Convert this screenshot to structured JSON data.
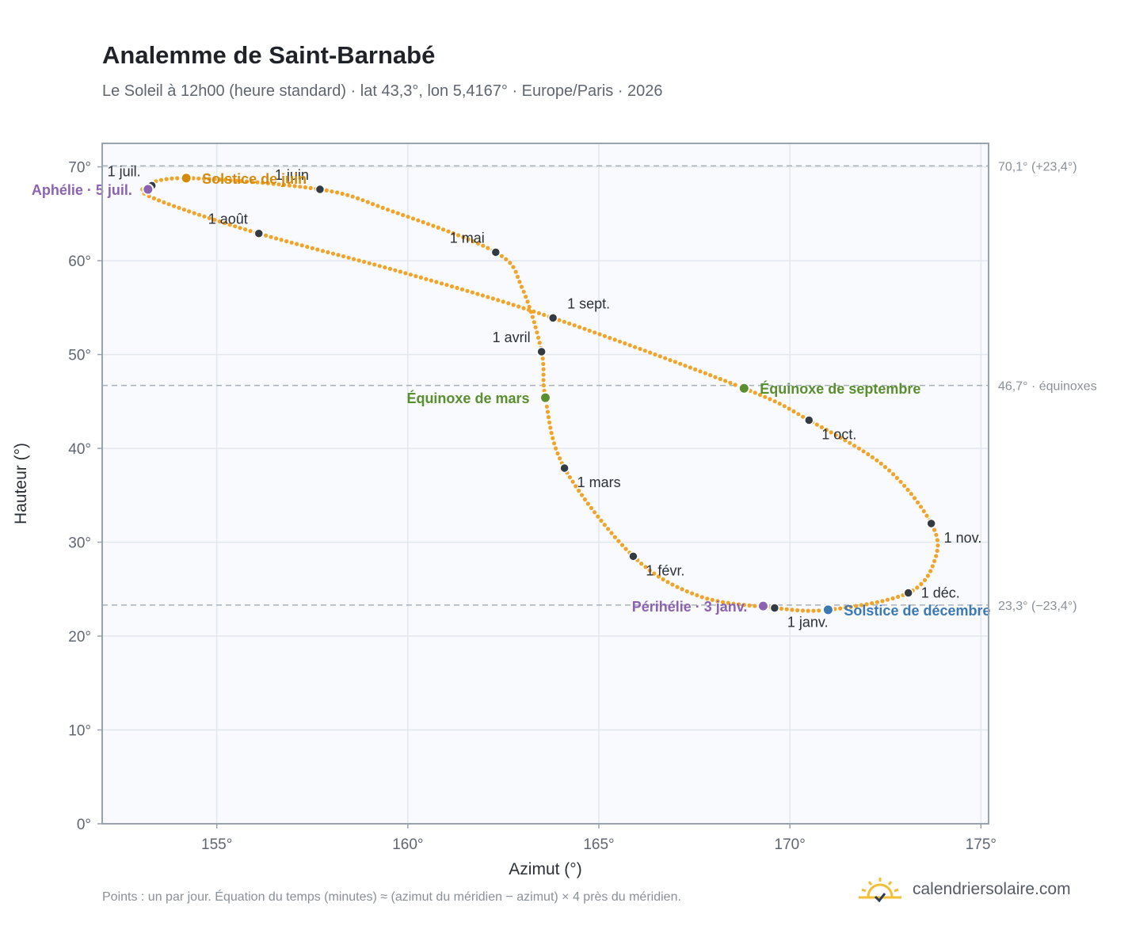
{
  "header": {
    "title": "Analemme de Saint-Barnabé",
    "subtitle": "Le Soleil à 12h00 (heure standard) · lat 43,3°, lon 5,4167° · Europe/Paris · 2026"
  },
  "footer": {
    "note": "Points : un par jour. Équation du temps (minutes) ≈ (azimut du méridien − azimut) × 4 près du méridien.",
    "brand": "calendriersolaire.com"
  },
  "colors": {
    "curve": "#f0a52a",
    "month_marker": "#343a42",
    "solstice_june": "#d68a0c",
    "solstice_december": "#3c78b4",
    "equinox": "#5a8f2f",
    "apsis": "#8c62b2",
    "reference_line": "#a9b1bc",
    "plot_background": "#f8fafd",
    "grid": "#e3e8ee"
  },
  "chart_data": {
    "type": "scatter",
    "xlabel": "Azimut (°)",
    "ylabel": "Hauteur (°)",
    "xlim": [
      152,
      175.2
    ],
    "ylim": [
      0,
      72.5
    ],
    "x_ticks": [
      155,
      160,
      165,
      170,
      175
    ],
    "x_tick_labels": [
      "155°",
      "160°",
      "165°",
      "170°",
      "175°"
    ],
    "y_ticks": [
      0,
      10,
      20,
      30,
      40,
      50,
      60,
      70
    ],
    "y_tick_labels": [
      "0°",
      "10°",
      "20°",
      "30°",
      "40°",
      "50°",
      "60°",
      "70°"
    ],
    "grid": true,
    "reference_lines": [
      {
        "y": 70.1,
        "label": "70,1° (+23,4°)"
      },
      {
        "y": 46.7,
        "label": "46,7° · équinoxes"
      },
      {
        "y": 23.3,
        "label": "23,3° (−23,4°)"
      }
    ],
    "month_markers": [
      {
        "label": "1 janv.",
        "x": 169.6,
        "y": 23.0,
        "label_pos": "below-right"
      },
      {
        "label": "1 févr.",
        "x": 165.9,
        "y": 28.5,
        "label_pos": "below-right"
      },
      {
        "label": "1 mars",
        "x": 164.1,
        "y": 37.9,
        "label_pos": "below-right"
      },
      {
        "label": "1 avril",
        "x": 163.5,
        "y": 50.3,
        "label_pos": "above-left"
      },
      {
        "label": "1 mai",
        "x": 162.3,
        "y": 60.9,
        "label_pos": "above-left"
      },
      {
        "label": "1 juin",
        "x": 157.7,
        "y": 67.6,
        "label_pos": "above-left"
      },
      {
        "label": "1 juil.",
        "x": 153.3,
        "y": 68.0,
        "label_pos": "above-left"
      },
      {
        "label": "1 août",
        "x": 156.1,
        "y": 62.9,
        "label_pos": "above-left"
      },
      {
        "label": "1 sept.",
        "x": 163.8,
        "y": 53.9,
        "label_pos": "above-right"
      },
      {
        "label": "1 oct.",
        "x": 170.5,
        "y": 43.0,
        "label_pos": "below-right"
      },
      {
        "label": "1 nov.",
        "x": 173.7,
        "y": 32.0,
        "label_pos": "below-right"
      },
      {
        "label": "1 déc.",
        "x": 173.1,
        "y": 24.6,
        "label_pos": "right"
      }
    ],
    "events": [
      {
        "label": "Solstice de juin",
        "x": 154.2,
        "y": 68.8,
        "color": "#d68a0c",
        "label_pos": "right"
      },
      {
        "label": "Aphélie · 5 juil.",
        "x": 153.2,
        "y": 67.6,
        "color": "#8c62b2",
        "label_pos": "left"
      },
      {
        "label": "Équinoxe de mars",
        "x": 163.6,
        "y": 45.4,
        "color": "#5a8f2f",
        "label_pos": "left"
      },
      {
        "label": "Équinoxe de septembre",
        "x": 168.8,
        "y": 46.4,
        "color": "#5a8f2f",
        "label_pos": "right"
      },
      {
        "label": "Périhélie · 3 janv.",
        "x": 169.3,
        "y": 23.2,
        "color": "#8c62b2",
        "label_pos": "left"
      },
      {
        "label": "Solstice de décembre",
        "x": 171.0,
        "y": 22.8,
        "color": "#3c78b4",
        "label_pos": "right"
      }
    ],
    "daily_path_knots": [
      [
        169.5,
        23.05
      ],
      [
        167.6,
        24.3
      ],
      [
        165.9,
        28.5
      ],
      [
        164.1,
        37.9
      ],
      [
        163.6,
        45.4
      ],
      [
        163.5,
        50.3
      ],
      [
        163.0,
        57.0
      ],
      [
        162.3,
        60.9
      ],
      [
        159.5,
        65.4
      ],
      [
        157.7,
        67.6
      ],
      [
        154.2,
        68.8
      ],
      [
        153.1,
        67.8
      ],
      [
        153.5,
        66.4
      ],
      [
        156.1,
        62.9
      ],
      [
        160.0,
        58.6
      ],
      [
        163.8,
        53.9
      ],
      [
        168.8,
        46.4
      ],
      [
        170.5,
        43.0
      ],
      [
        172.5,
        38.0
      ],
      [
        173.7,
        32.0
      ],
      [
        173.8,
        28.2
      ],
      [
        173.1,
        24.6
      ],
      [
        171.0,
        22.8
      ],
      [
        169.5,
        23.05
      ]
    ]
  }
}
